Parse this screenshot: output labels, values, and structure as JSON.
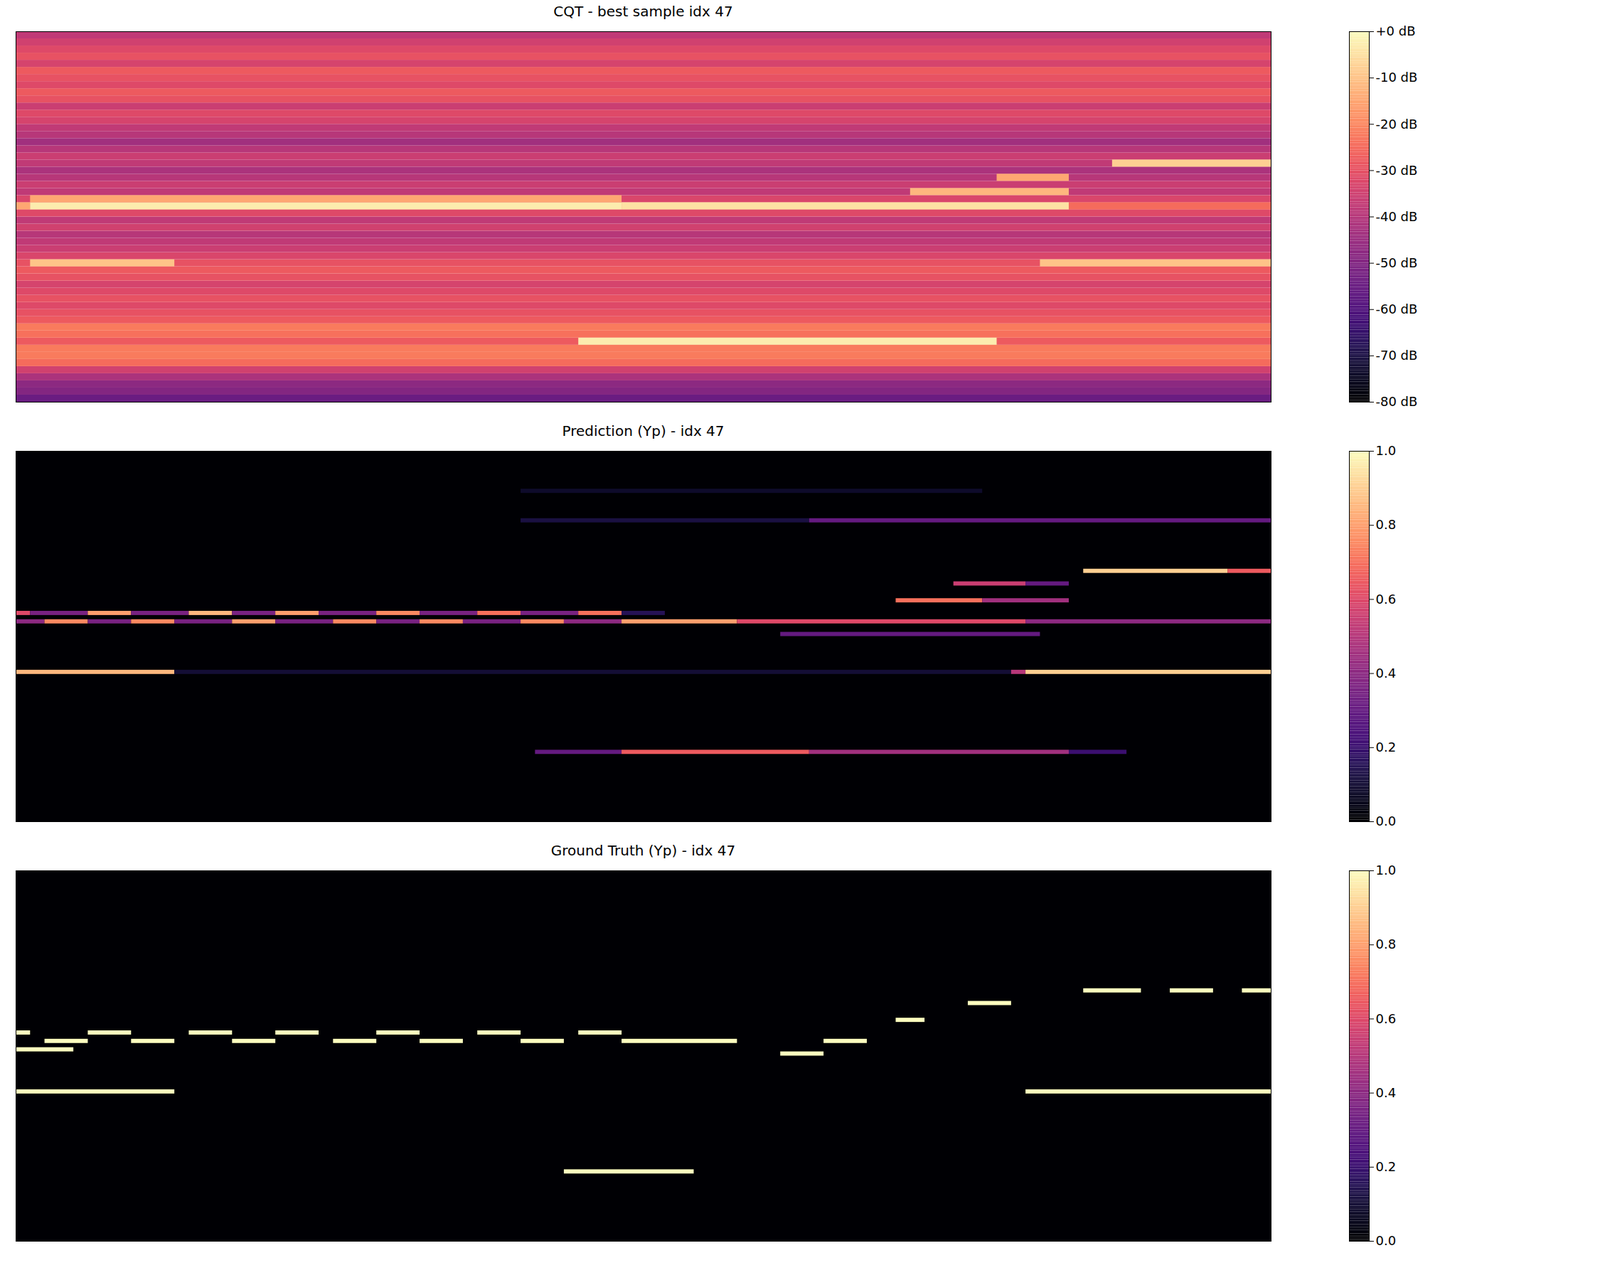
{
  "chart_data": [
    {
      "type": "heatmap",
      "title": "CQT - best sample idx 47",
      "xlim": [
        0,
        87
      ],
      "ylim": [
        0,
        52
      ],
      "tick_labels": false,
      "colorbar": {
        "range": [
          -80,
          0
        ],
        "ticks": [
          {
            "value": 0,
            "label": "+0 dB"
          },
          {
            "value": -10,
            "label": "-10 dB"
          },
          {
            "value": -20,
            "label": "-20 dB"
          },
          {
            "value": -30,
            "label": "-30 dB"
          },
          {
            "value": -40,
            "label": "-40 dB"
          },
          {
            "value": -50,
            "label": "-50 dB"
          },
          {
            "value": -60,
            "label": "-60 dB"
          },
          {
            "value": -70,
            "label": "-70 dB"
          },
          {
            "value": -80,
            "label": "-80 dB"
          }
        ]
      },
      "row_levels": [
        -55,
        -50,
        -48,
        -42,
        -35,
        -25,
        -22,
        -22,
        -28,
        -24,
        -22,
        -28,
        -30,
        -32,
        -30,
        -32,
        -34,
        -30,
        -28,
        -30,
        -33,
        -36,
        -38,
        -40,
        -35,
        -38,
        -32,
        -30,
        -33,
        -38,
        -36,
        -40,
        -42,
        -38,
        -36,
        -40,
        -44,
        -40,
        -38,
        -34,
        -32,
        -36,
        -30,
        -28,
        -32,
        -30,
        -28,
        -34,
        -30,
        -32,
        -35,
        -38
      ],
      "cells": [
        [
          27,
          0,
          1,
          -15
        ],
        [
          27,
          1,
          42,
          -3
        ],
        [
          27,
          42,
          73,
          -5
        ],
        [
          27,
          73,
          87,
          -25
        ],
        [
          28,
          1,
          42,
          -15
        ],
        [
          19,
          1,
          11,
          -10
        ],
        [
          19,
          71,
          87,
          -10
        ],
        [
          8,
          39,
          68,
          -3
        ],
        [
          29,
          62,
          73,
          -12
        ],
        [
          31,
          68,
          73,
          -15
        ],
        [
          33,
          76,
          87,
          -8
        ]
      ]
    },
    {
      "type": "heatmap",
      "title": "Prediction (Yp) - idx 47",
      "xlim": [
        0,
        87
      ],
      "ylim": [
        0,
        88
      ],
      "tick_labels": false,
      "colorbar": {
        "range": [
          0,
          1
        ],
        "ticks": [
          {
            "value": 0,
            "label": "0.0"
          },
          0.2,
          0.4,
          0.6,
          0.8,
          {
            "value": 1,
            "label": "1.0"
          }
        ]
      },
      "background": 0,
      "cells": [
        [
          49,
          0,
          1,
          0.6
        ],
        [
          49,
          1,
          5,
          0.35
        ],
        [
          49,
          5,
          8,
          0.8
        ],
        [
          49,
          8,
          12,
          0.35
        ],
        [
          49,
          12,
          15,
          0.85
        ],
        [
          49,
          15,
          18,
          0.35
        ],
        [
          49,
          18,
          21,
          0.8
        ],
        [
          49,
          21,
          25,
          0.35
        ],
        [
          49,
          25,
          28,
          0.75
        ],
        [
          49,
          28,
          32,
          0.35
        ],
        [
          49,
          32,
          35,
          0.7
        ],
        [
          49,
          35,
          39,
          0.35
        ],
        [
          49,
          39,
          42,
          0.7
        ],
        [
          49,
          42,
          45,
          0.15
        ],
        [
          47,
          0,
          2,
          0.4
        ],
        [
          47,
          2,
          5,
          0.75
        ],
        [
          47,
          5,
          8,
          0.35
        ],
        [
          47,
          8,
          11,
          0.75
        ],
        [
          47,
          11,
          15,
          0.35
        ],
        [
          47,
          15,
          18,
          0.8
        ],
        [
          47,
          18,
          22,
          0.35
        ],
        [
          47,
          22,
          25,
          0.75
        ],
        [
          47,
          25,
          28,
          0.35
        ],
        [
          47,
          28,
          31,
          0.75
        ],
        [
          47,
          31,
          35,
          0.35
        ],
        [
          47,
          35,
          38,
          0.75
        ],
        [
          47,
          38,
          42,
          0.4
        ],
        [
          47,
          42,
          50,
          0.8
        ],
        [
          47,
          50,
          70,
          0.6
        ],
        [
          47,
          70,
          87,
          0.4
        ],
        [
          35,
          0,
          11,
          0.85
        ],
        [
          35,
          11,
          69,
          0.1
        ],
        [
          35,
          69,
          70,
          0.5
        ],
        [
          35,
          70,
          87,
          0.9
        ],
        [
          16,
          36,
          42,
          0.3
        ],
        [
          16,
          42,
          55,
          0.65
        ],
        [
          16,
          55,
          73,
          0.45
        ],
        [
          16,
          73,
          77,
          0.2
        ],
        [
          44,
          53,
          71,
          0.3
        ],
        [
          52,
          61,
          67,
          0.7
        ],
        [
          52,
          67,
          73,
          0.45
        ],
        [
          56,
          65,
          70,
          0.55
        ],
        [
          56,
          70,
          73,
          0.3
        ],
        [
          59,
          74,
          84,
          0.9
        ],
        [
          59,
          84,
          87,
          0.65
        ],
        [
          71,
          35,
          55,
          0.12
        ],
        [
          71,
          55,
          87,
          0.3
        ],
        [
          78,
          35,
          67,
          0.08
        ]
      ]
    },
    {
      "type": "heatmap",
      "title": "Ground Truth (Yp) - idx 47",
      "xlim": [
        0,
        87
      ],
      "ylim": [
        0,
        88
      ],
      "tick_labels": false,
      "colorbar": {
        "range": [
          0,
          1
        ],
        "ticks": [
          {
            "value": 0,
            "label": "0.0"
          },
          0.2,
          0.4,
          0.6,
          0.8,
          {
            "value": 1,
            "label": "1.0"
          }
        ]
      },
      "background": 0,
      "cells": [
        [
          49,
          0,
          1,
          1
        ],
        [
          49,
          5,
          8,
          1
        ],
        [
          49,
          12,
          15,
          1
        ],
        [
          49,
          18,
          21,
          1
        ],
        [
          49,
          25,
          28,
          1
        ],
        [
          49,
          32,
          35,
          1
        ],
        [
          49,
          39,
          42,
          1
        ],
        [
          47,
          2,
          5,
          1
        ],
        [
          47,
          8,
          11,
          1
        ],
        [
          47,
          15,
          18,
          1
        ],
        [
          47,
          22,
          25,
          1
        ],
        [
          47,
          28,
          31,
          1
        ],
        [
          47,
          35,
          38,
          1
        ],
        [
          47,
          42,
          50,
          1
        ],
        [
          47,
          56,
          59,
          1
        ],
        [
          45,
          0,
          4,
          1
        ],
        [
          35,
          0,
          11,
          1
        ],
        [
          35,
          70,
          87,
          1
        ],
        [
          16,
          38,
          47,
          1
        ],
        [
          44,
          53,
          56,
          1
        ],
        [
          52,
          61,
          63,
          1
        ],
        [
          56,
          66,
          69,
          1
        ],
        [
          59,
          74,
          78,
          1
        ],
        [
          59,
          80,
          83,
          1
        ],
        [
          59,
          85,
          87,
          1
        ]
      ]
    }
  ]
}
